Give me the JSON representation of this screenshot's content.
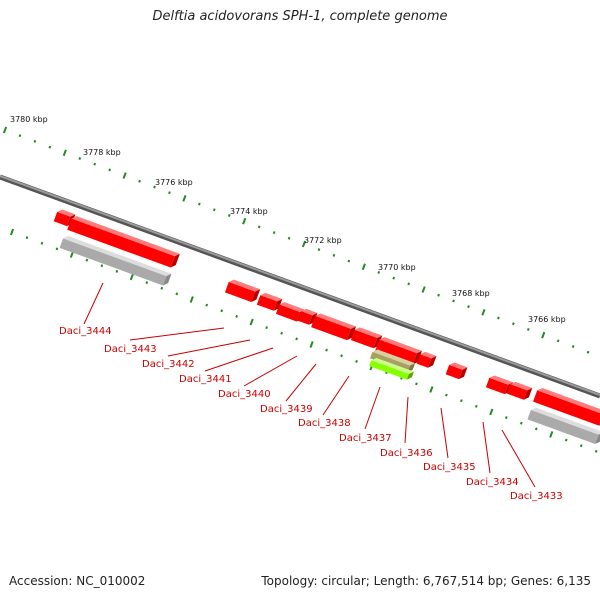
{
  "title": "Delftia acidovorans SPH-1, complete genome",
  "footer": {
    "accession": "Accession: NC_010002",
    "summary": "Topology: circular; Length: 6,767,514 bp; Genes: 6,135"
  },
  "colors": {
    "cds": "#ff0000",
    "cds_top": "#ff7a7a",
    "cds_side": "#b80000",
    "rna": "#aaaaaa",
    "rna_top": "#dddddd",
    "rna_side": "#888888",
    "highlight_olive": "#a8a060",
    "highlight_lime": "#88ff00",
    "backbone": "#777777",
    "tick": "#228B22",
    "label": "#cc0000",
    "text": "#222222"
  },
  "scale": {
    "unit": "kbp",
    "ticks": [
      "3780 kbp",
      "3778 kbp",
      "3776 kbp",
      "3774 kbp",
      "3772 kbp",
      "3770 kbp",
      "3768 kbp",
      "3766 kbp"
    ]
  },
  "genes": [
    {
      "locus_tag": "Daci_3444"
    },
    {
      "locus_tag": "Daci_3443"
    },
    {
      "locus_tag": "Daci_3442"
    },
    {
      "locus_tag": "Daci_3441"
    },
    {
      "locus_tag": "Daci_3440"
    },
    {
      "locus_tag": "Daci_3439"
    },
    {
      "locus_tag": "Daci_3438"
    },
    {
      "locus_tag": "Daci_3437"
    },
    {
      "locus_tag": "Daci_3436"
    },
    {
      "locus_tag": "Daci_3435"
    },
    {
      "locus_tag": "Daci_3434"
    },
    {
      "locus_tag": "Daci_3433"
    }
  ]
}
